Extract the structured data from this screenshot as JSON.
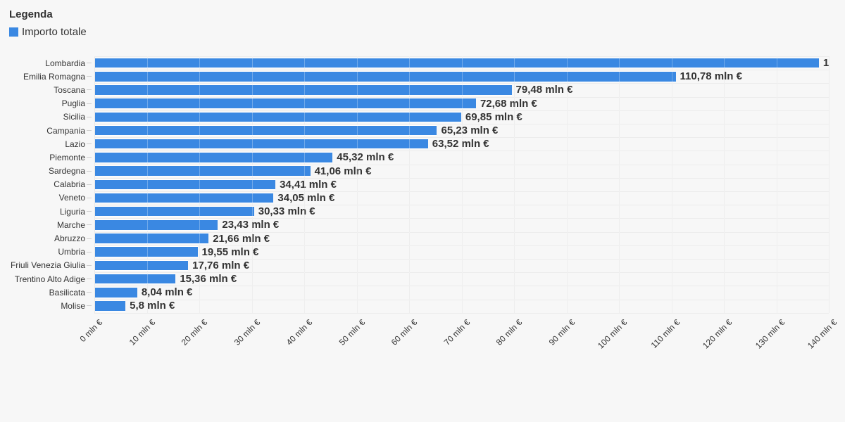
{
  "legend": {
    "title": "Legenda",
    "series_label": "Importo totale",
    "swatch_color": "#3a88e2"
  },
  "chart_data": {
    "type": "bar",
    "orientation": "horizontal",
    "title": "",
    "xlabel": "",
    "ylabel": "",
    "unit": "mln €",
    "grid": true,
    "legend_position": "top-left",
    "bar_color": "#3a88e2",
    "background_color": "#f7f7f7",
    "xlim": [
      0,
      140
    ],
    "x_ticks": [
      "0 mln €",
      "10 mln €",
      "20 mln €",
      "30 mln €",
      "40 mln €",
      "50 mln €",
      "60 mln €",
      "70 mln €",
      "80 mln €",
      "90 mln €",
      "100 mln €",
      "110 mln €",
      "120 mln €",
      "130 mln €",
      "140 mln €"
    ],
    "categories": [
      "Lombardia",
      "Emilia Romagna",
      "Toscana",
      "Puglia",
      "Sicilia",
      "Campania",
      "Lazio",
      "Piemonte",
      "Sardegna",
      "Calabria",
      "Veneto",
      "Liguria",
      "Marche",
      "Abruzzo",
      "Umbria",
      "Friuli Venezia Giulia",
      "Trentino Alto Adige",
      "Basilicata",
      "Molise"
    ],
    "series": [
      {
        "name": "Importo totale",
        "values": [
          138.1,
          110.78,
          79.48,
          72.68,
          69.85,
          65.23,
          63.52,
          45.32,
          41.06,
          34.41,
          34.05,
          30.33,
          23.43,
          21.66,
          19.55,
          17.76,
          15.36,
          8.04,
          5.8
        ],
        "value_labels": [
          "1",
          "110,78 mln €",
          "79,48 mln €",
          "72,68 mln €",
          "69,85 mln €",
          "65,23 mln €",
          "63,52 mln €",
          "45,32 mln €",
          "41,06 mln €",
          "34,41 mln €",
          "34,05 mln €",
          "30,33 mln €",
          "23,43 mln €",
          "21,66 mln €",
          "19,55 mln €",
          "17,76 mln €",
          "15,36 mln €",
          "8,04 mln €",
          "5,8 mln €"
        ]
      }
    ],
    "notes": "First value label truncated at chart edge; Lombardia value estimated from axis"
  }
}
